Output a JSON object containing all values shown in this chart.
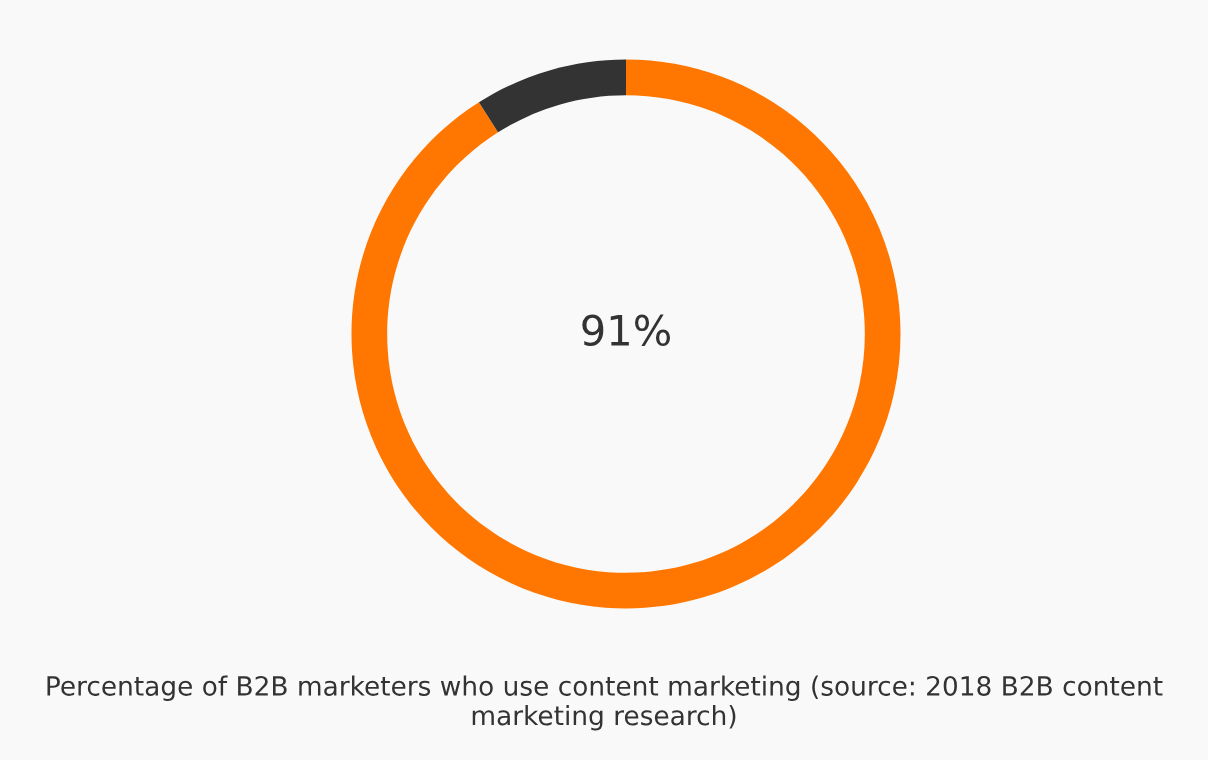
{
  "chart_data": {
    "type": "donut",
    "categories": [
      null,
      null
    ],
    "values": [
      91,
      9
    ],
    "colors": [
      "#ff7700",
      "#333333"
    ],
    "annotations": [
      "91%",
      "Percentage of B2B marketers who use content marketing (source: 2018 B2B content marketing research)"
    ]
  }
}
